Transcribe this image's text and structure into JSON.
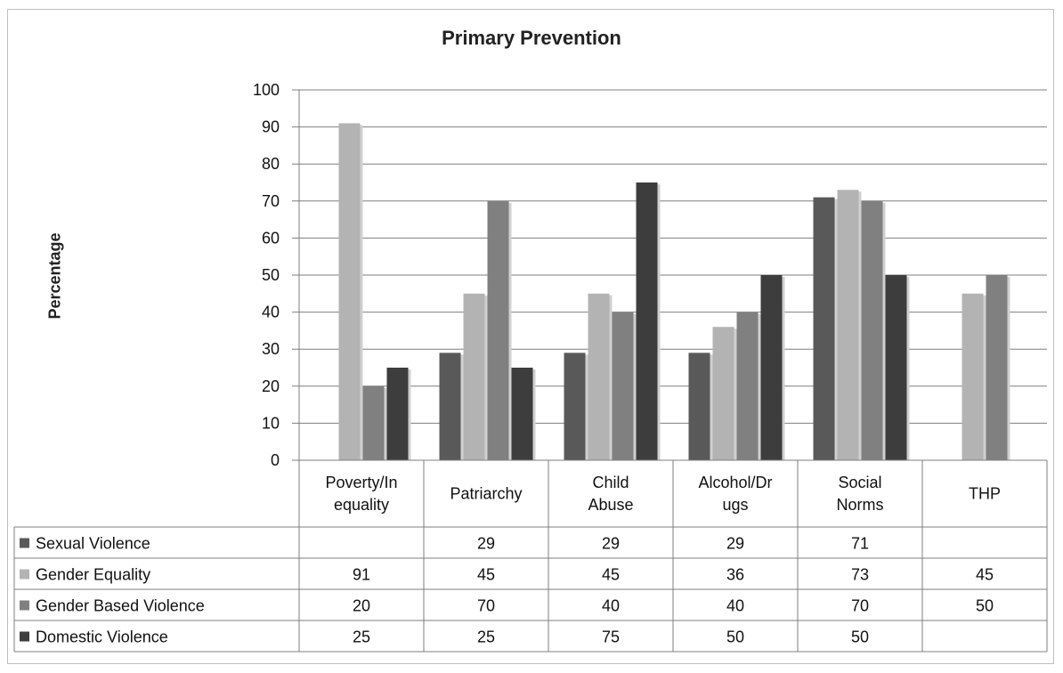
{
  "chart_data": {
    "type": "bar",
    "title": "Primary Prevention",
    "ylabel": "Percentage",
    "xlabel": "",
    "ylim": [
      0,
      100
    ],
    "yticks": [
      0,
      10,
      20,
      30,
      40,
      50,
      60,
      70,
      80,
      90,
      100
    ],
    "grid": true,
    "legend_placement": "data-table",
    "categories": [
      [
        "Poverty/In",
        "equality"
      ],
      [
        "Patriarchy"
      ],
      [
        "Child",
        "Abuse"
      ],
      [
        "Alcohol/Dr",
        "ugs"
      ],
      [
        "Social",
        "Norms"
      ],
      [
        "THP"
      ]
    ],
    "series": [
      {
        "name": "Sexual Violence",
        "color": "#595959",
        "values": [
          null,
          29,
          29,
          29,
          71,
          null
        ]
      },
      {
        "name": "Gender Equality",
        "color": "#b3b3b3",
        "values": [
          91,
          45,
          45,
          36,
          73,
          45
        ]
      },
      {
        "name": "Gender Based Violence",
        "color": "#808080",
        "values": [
          20,
          70,
          40,
          40,
          70,
          50
        ]
      },
      {
        "name": "Domestic Violence",
        "color": "#3d3d3d",
        "values": [
          25,
          25,
          75,
          50,
          50,
          null
        ]
      }
    ]
  }
}
